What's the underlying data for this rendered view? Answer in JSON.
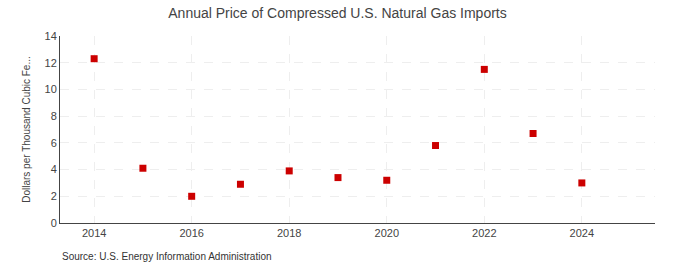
{
  "chart_data": {
    "type": "scatter",
    "title": "Annual Price of Compressed U.S. Natural Gas Imports",
    "ylabel": "Dollars per Thousand Cubic Fe...",
    "annotations": [
      "Source: U.S. Energy Information Administration"
    ],
    "x": [
      2014,
      2015,
      2016,
      2017,
      2018,
      2019,
      2020,
      2021,
      2022,
      2023,
      2024
    ],
    "values": [
      12.3,
      4.1,
      2.0,
      2.9,
      3.9,
      3.4,
      3.2,
      5.8,
      11.5,
      6.7,
      3.0
    ],
    "color": "#cc0000",
    "marker": "square",
    "xlim": [
      2013.3,
      2025.5
    ],
    "xticks": [
      2014,
      2016,
      2018,
      2020,
      2022,
      2024
    ],
    "ylim": [
      0,
      14
    ],
    "yticks": [
      0,
      2,
      4,
      6,
      8,
      10,
      12,
      14
    ],
    "grid": true
  }
}
